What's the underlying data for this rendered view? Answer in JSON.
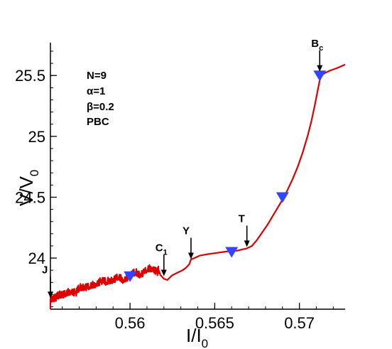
{
  "chart_data": {
    "type": "line",
    "xlabel": {
      "main": "I/I",
      "sub": "0"
    },
    "ylabel": {
      "main": "V/V",
      "sub": "0"
    },
    "xlim": [
      0.5553,
      0.5727
    ],
    "ylim": [
      23.58,
      25.77
    ],
    "xticks": [
      {
        "value": 0.56,
        "label": "0.56"
      },
      {
        "value": 0.565,
        "label": "0.565"
      },
      {
        "value": 0.57,
        "label": "0.57"
      }
    ],
    "yticks": [
      {
        "value": 24,
        "label": "24"
      },
      {
        "value": 24.5,
        "label": "24.5"
      },
      {
        "value": 25,
        "label": "25"
      },
      {
        "value": 25.5,
        "label": "25.5"
      }
    ],
    "line_color": "#dd0000",
    "marker_color": "#3344ff",
    "parameters": [
      "N=9",
      "α=1",
      "β=0.2",
      "PBC"
    ],
    "series": [
      {
        "x": [
          0.5553,
          0.5553,
          0.5554,
          0.5556,
          0.5558,
          0.556,
          0.5562,
          0.5565,
          0.5568,
          0.557,
          0.5573,
          0.5576,
          0.558,
          0.5583,
          0.5586,
          0.559,
          0.5593,
          0.5596,
          0.56,
          0.5603,
          0.5606,
          0.561,
          0.5613,
          0.5616,
          0.5617,
          0.5618,
          0.562,
          0.5622,
          0.5625,
          0.5628,
          0.5631,
          0.5633,
          0.5635,
          0.5636,
          0.5638,
          0.5641,
          0.5645,
          0.565,
          0.5655,
          0.566,
          0.5663,
          0.5666,
          0.5669,
          0.5672,
          0.5675,
          0.5678,
          0.5681,
          0.5684,
          0.5687,
          0.569,
          0.5693,
          0.5696,
          0.5699,
          0.5702,
          0.5705,
          0.5707,
          0.5709,
          0.5711,
          0.5712,
          0.5713,
          0.5715,
          0.5718,
          0.5722,
          0.5727
        ],
        "y": [
          23.58,
          23.66,
          23.67,
          23.68,
          23.69,
          23.71,
          23.7,
          23.73,
          23.72,
          23.75,
          23.77,
          23.76,
          23.79,
          23.82,
          23.8,
          23.83,
          23.84,
          23.82,
          23.86,
          23.88,
          23.87,
          23.9,
          23.92,
          23.89,
          23.9,
          23.86,
          23.83,
          23.82,
          23.86,
          23.88,
          23.9,
          23.92,
          23.95,
          23.99,
          24.0,
          24.02,
          24.03,
          24.04,
          24.05,
          24.06,
          24.06,
          24.07,
          24.08,
          24.1,
          24.15,
          24.21,
          24.27,
          24.34,
          24.41,
          24.48,
          24.56,
          24.65,
          24.75,
          24.87,
          25.01,
          25.12,
          25.25,
          25.39,
          25.46,
          25.5,
          25.52,
          25.54,
          25.56,
          25.59
        ],
        "noisy_range": [
          0.5553,
          0.5617
        ]
      }
    ],
    "markers": [
      {
        "x": 0.56,
        "y": 23.85
      },
      {
        "x": 0.566,
        "y": 24.05
      },
      {
        "x": 0.569,
        "y": 24.5
      },
      {
        "x": 0.5712,
        "y": 25.5
      }
    ],
    "annotations": [
      {
        "label": "J",
        "sub": "",
        "x": 0.5553,
        "y": 23.66
      },
      {
        "label": "C",
        "sub": "1",
        "x": 0.562,
        "y": 23.84
      },
      {
        "label": "Y",
        "sub": "",
        "x": 0.5636,
        "y": 23.98
      },
      {
        "label": "T",
        "sub": "",
        "x": 0.5669,
        "y": 24.08
      },
      {
        "label": "B",
        "sub": "c",
        "x": 0.5712,
        "y": 25.52
      }
    ]
  }
}
